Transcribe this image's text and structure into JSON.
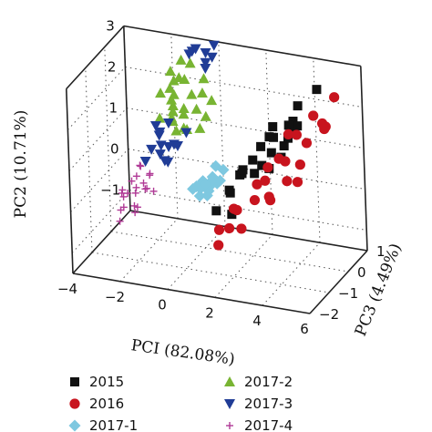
{
  "chart_data": {
    "type": "scatter",
    "title": "",
    "projection": "3d",
    "grid": true,
    "legend_position": "bottom",
    "axes": {
      "x": {
        "label": "PCI (82.08%)",
        "ticks": [
          "−4",
          "−2",
          "0",
          "2",
          "4",
          "6"
        ],
        "range": [
          -4,
          6
        ]
      },
      "y": {
        "label": "PC2 (10.71%)",
        "ticks": [
          "−1",
          "0",
          "1",
          "2",
          "3"
        ],
        "range": [
          -1.5,
          3
        ]
      },
      "z": {
        "label": "PC3 (4.49%)",
        "ticks": [
          "−2",
          "−1",
          "0",
          "1"
        ],
        "range": [
          -2,
          1
        ]
      }
    },
    "series": [
      {
        "name": "2015",
        "marker": "square",
        "color": "#111111",
        "points": [
          [
            3.2,
            1.6,
            -0.2
          ],
          [
            3.8,
            1.9,
            0.1
          ],
          [
            4.4,
            2.1,
            -0.4
          ],
          [
            2.6,
            1.3,
            0.3
          ],
          [
            3.0,
            1.1,
            -0.6
          ],
          [
            2.2,
            0.9,
            -0.1
          ],
          [
            3.5,
            1.4,
            0.5
          ],
          [
            4.0,
            1.5,
            -0.8
          ],
          [
            2.8,
            0.7,
            0.0
          ],
          [
            1.8,
            0.6,
            -0.3
          ],
          [
            3.3,
            1.2,
            0.2
          ],
          [
            4.6,
            2.6,
            0.4
          ],
          [
            2.4,
            1.0,
            -0.9
          ],
          [
            3.9,
            1.7,
            -0.3
          ],
          [
            1.5,
            0.3,
            -0.5
          ],
          [
            2.0,
            0.4,
            0.2
          ],
          [
            2.9,
            1.5,
            -0.5
          ],
          [
            4.2,
            2.2,
            -0.6
          ],
          [
            1.2,
            0.0,
            -0.1
          ],
          [
            1.0,
            -0.2,
            -0.6
          ],
          [
            3.6,
            2.0,
            0.6
          ],
          [
            2.5,
            0.8,
            0.5
          ],
          [
            1.6,
            0.5,
            0.1
          ],
          [
            3.1,
            1.8,
            -0.1
          ],
          [
            1.4,
            -0.4,
            -0.3
          ]
        ]
      },
      {
        "name": "2016",
        "marker": "circle",
        "color": "#c8141e",
        "points": [
          [
            4.6,
            1.6,
            -0.2
          ],
          [
            5.2,
            1.9,
            0.0
          ],
          [
            4.0,
            1.3,
            -0.6
          ],
          [
            5.6,
            2.2,
            -0.4
          ],
          [
            4.3,
            1.0,
            -0.9
          ],
          [
            3.2,
            0.8,
            -0.7
          ],
          [
            3.6,
            0.6,
            -1.0
          ],
          [
            2.9,
            0.4,
            -0.9
          ],
          [
            2.3,
            0.2,
            -1.1
          ],
          [
            4.8,
            1.4,
            -0.8
          ],
          [
            5.0,
            1.2,
            -1.2
          ],
          [
            3.9,
            0.7,
            -1.3
          ],
          [
            2.6,
            0.5,
            -0.4
          ],
          [
            4.5,
            2.0,
            0.3
          ],
          [
            5.5,
            2.6,
            0.2
          ],
          [
            3.4,
            1.1,
            -0.2
          ],
          [
            2.0,
            0.1,
            -0.9
          ],
          [
            1.6,
            -0.3,
            -1.2
          ],
          [
            1.8,
            -0.5,
            -1.5
          ],
          [
            2.8,
            0.0,
            -1.5
          ],
          [
            4.1,
            1.7,
            -0.1
          ],
          [
            3.0,
            0.9,
            -0.3
          ],
          [
            5.8,
            2.5,
            -0.8
          ],
          [
            2.2,
            -0.1,
            -1.4
          ],
          [
            3.5,
            1.5,
            0.2
          ]
        ]
      },
      {
        "name": "2017-1",
        "marker": "diamond",
        "color": "#7ec8e0",
        "points": [
          [
            0.0,
            0.1,
            0.0
          ],
          [
            0.3,
            0.2,
            0.1
          ],
          [
            0.5,
            0.2,
            -0.2
          ],
          [
            -0.2,
            0.0,
            0.2
          ],
          [
            0.2,
            -0.1,
            0.0
          ],
          [
            0.6,
            0.3,
            0.3
          ],
          [
            0.1,
            0.1,
            -0.3
          ],
          [
            -0.4,
            -0.1,
            0.1
          ],
          [
            0.4,
            0.0,
            0.2
          ],
          [
            0.7,
            0.2,
            0.0
          ],
          [
            -0.1,
            -0.2,
            -0.1
          ],
          [
            0.2,
            0.3,
            0.4
          ],
          [
            0.5,
            0.1,
            0.1
          ],
          [
            -0.3,
            0.0,
            -0.2
          ],
          [
            0.1,
            -0.1,
            0.3
          ],
          [
            0.4,
            0.2,
            -0.1
          ],
          [
            0.0,
            0.0,
            0.1
          ],
          [
            0.3,
            -0.1,
            -0.2
          ]
        ]
      },
      {
        "name": "2017-2",
        "marker": "triangle-up",
        "color": "#78b432",
        "points": [
          [
            -1.5,
            2.5,
            0.3
          ],
          [
            -1.2,
            2.4,
            0.1
          ],
          [
            -1.0,
            2.3,
            0.4
          ],
          [
            -1.7,
            2.1,
            0.0
          ],
          [
            -1.3,
            2.0,
            0.2
          ],
          [
            -1.1,
            1.9,
            -0.1
          ],
          [
            -0.8,
            1.9,
            0.5
          ],
          [
            -1.5,
            1.8,
            0.3
          ],
          [
            -1.2,
            1.7,
            0.0
          ],
          [
            -0.9,
            1.7,
            0.2
          ],
          [
            -1.6,
            1.6,
            -0.2
          ],
          [
            -1.0,
            1.5,
            0.3
          ],
          [
            -0.7,
            1.5,
            0.6
          ],
          [
            -1.3,
            1.4,
            0.1
          ],
          [
            -1.0,
            1.3,
            -0.1
          ],
          [
            -1.6,
            1.3,
            0.4
          ],
          [
            -0.8,
            1.2,
            0.2
          ],
          [
            -0.5,
            1.1,
            0.5
          ],
          [
            -1.2,
            2.7,
            0.5
          ],
          [
            -0.9,
            2.6,
            0.6
          ],
          [
            -1.4,
            2.2,
            0.6
          ],
          [
            -0.6,
            1.8,
            0.8
          ],
          [
            -1.8,
            1.9,
            0.6
          ],
          [
            -0.4,
            1.3,
            0.7
          ],
          [
            -0.3,
            1.6,
            0.9
          ],
          [
            -1.1,
            1.1,
            0.4
          ],
          [
            -0.6,
            2.1,
            0.9
          ]
        ]
      },
      {
        "name": "2017-3",
        "marker": "triangle-down",
        "color": "#203c96",
        "points": [
          [
            -0.8,
            2.9,
            0.6
          ],
          [
            -0.4,
            2.8,
            0.8
          ],
          [
            -1.1,
            2.7,
            0.8
          ],
          [
            -0.5,
            2.5,
            0.9
          ],
          [
            -1.4,
            1.4,
            0.0
          ],
          [
            -1.7,
            1.2,
            -0.1
          ],
          [
            -1.9,
            1.0,
            0.1
          ],
          [
            -1.5,
            1.0,
            -0.3
          ],
          [
            -1.2,
            0.9,
            0.0
          ],
          [
            -2.0,
            0.8,
            -0.2
          ],
          [
            -1.6,
            0.7,
            0.2
          ],
          [
            -1.3,
            0.7,
            0.3
          ],
          [
            -1.8,
            0.6,
            0.0
          ],
          [
            -0.3,
            2.6,
            1.0
          ],
          [
            -0.6,
            2.3,
            1.0
          ],
          [
            -2.2,
            1.1,
            0.3
          ],
          [
            -1.0,
            1.0,
            0.4
          ],
          [
            -2.1,
            0.6,
            -0.4
          ],
          [
            -1.4,
            0.5,
            -0.1
          ],
          [
            -1.7,
            0.4,
            0.1
          ],
          [
            -0.2,
            2.9,
            1.0
          ],
          [
            -0.9,
            2.8,
            0.9
          ]
        ]
      },
      {
        "name": "2017-4",
        "marker": "plus",
        "color": "#b03a96",
        "points": [
          [
            -2.5,
            0.2,
            -0.4
          ],
          [
            -2.2,
            0.1,
            -0.1
          ],
          [
            -2.8,
            0.0,
            -0.3
          ],
          [
            -2.4,
            -0.1,
            -0.6
          ],
          [
            -2.0,
            0.0,
            -0.5
          ],
          [
            -2.7,
            -0.2,
            -0.2
          ],
          [
            -2.3,
            -0.3,
            -0.8
          ],
          [
            -2.9,
            -0.1,
            -0.7
          ],
          [
            -2.1,
            0.2,
            -0.2
          ],
          [
            -2.6,
            0.3,
            -0.1
          ],
          [
            -1.8,
            -0.1,
            -0.4
          ],
          [
            -2.4,
            0.1,
            -1.0
          ],
          [
            -3.0,
            -0.3,
            -0.5
          ],
          [
            -2.2,
            -0.4,
            -0.9
          ],
          [
            -2.5,
            -0.2,
            -1.1
          ],
          [
            -1.9,
            0.1,
            -0.7
          ],
          [
            -2.7,
            0.1,
            -0.9
          ],
          [
            -2.3,
            0.0,
            -0.3
          ],
          [
            -2.0,
            -0.2,
            -1.0
          ],
          [
            -2.8,
            -0.4,
            -0.9
          ],
          [
            -2.4,
            0.4,
            -0.3
          ],
          [
            -2.6,
            -0.5,
            -1.2
          ]
        ]
      }
    ]
  }
}
